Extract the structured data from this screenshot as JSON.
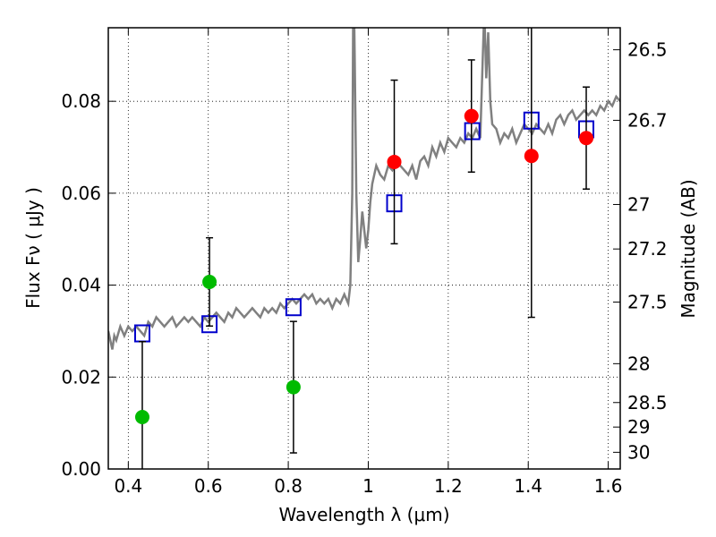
{
  "chart_data": {
    "type": "scatter",
    "xlabel": "Wavelength  λ (μm)",
    "ylabel": "Flux  Fν  ( μJy )",
    "y2label": "Magnitude (AB)",
    "xlim": [
      0.35,
      1.63
    ],
    "ylim": [
      0.0,
      0.096
    ],
    "grid": true,
    "x_ticks": [
      0.4,
      0.6,
      0.8,
      1.0,
      1.2,
      1.4,
      1.6
    ],
    "x_tick_labels": [
      "0.4",
      "0.6",
      "0.8",
      "1",
      "1.2",
      "1.4",
      "1.6"
    ],
    "y_ticks": [
      0.0,
      0.02,
      0.04,
      0.06,
      0.08
    ],
    "y_tick_labels": [
      "0.00",
      "0.02",
      "0.04",
      "0.06",
      "0.08"
    ],
    "y2_ticks": [
      26.5,
      26.7,
      27,
      27.2,
      27.5,
      28,
      28.5,
      29,
      30
    ],
    "y2_tick_labels": [
      "26.5",
      "26.7",
      "27",
      "27.2",
      "27.5",
      "28",
      "28.5",
      "29",
      "30"
    ],
    "series": [
      {
        "kind": "line",
        "color": "#808080",
        "x": [
          0.35,
          0.36,
          0.365,
          0.37,
          0.38,
          0.39,
          0.4,
          0.41,
          0.42,
          0.43,
          0.44,
          0.45,
          0.46,
          0.47,
          0.48,
          0.49,
          0.5,
          0.51,
          0.52,
          0.53,
          0.54,
          0.55,
          0.56,
          0.57,
          0.58,
          0.59,
          0.6,
          0.61,
          0.62,
          0.63,
          0.64,
          0.65,
          0.66,
          0.67,
          0.68,
          0.69,
          0.7,
          0.71,
          0.72,
          0.73,
          0.74,
          0.75,
          0.76,
          0.77,
          0.78,
          0.79,
          0.8,
          0.81,
          0.82,
          0.83,
          0.84,
          0.85,
          0.86,
          0.87,
          0.88,
          0.89,
          0.9,
          0.91,
          0.92,
          0.93,
          0.94,
          0.95,
          0.955,
          0.96,
          0.963,
          0.966,
          0.97,
          0.975,
          0.98,
          0.985,
          0.99,
          0.995,
          1.0,
          1.005,
          1.01,
          1.02,
          1.03,
          1.04,
          1.05,
          1.06,
          1.07,
          1.08,
          1.09,
          1.1,
          1.11,
          1.12,
          1.13,
          1.14,
          1.15,
          1.16,
          1.17,
          1.18,
          1.19,
          1.2,
          1.21,
          1.22,
          1.23,
          1.24,
          1.25,
          1.26,
          1.27,
          1.28,
          1.29,
          1.295,
          1.3,
          1.305,
          1.31,
          1.32,
          1.33,
          1.34,
          1.35,
          1.36,
          1.37,
          1.38,
          1.39,
          1.4,
          1.41,
          1.42,
          1.43,
          1.44,
          1.45,
          1.46,
          1.47,
          1.48,
          1.49,
          1.5,
          1.51,
          1.52,
          1.53,
          1.54,
          1.55,
          1.56,
          1.57,
          1.58,
          1.59,
          1.6,
          1.61,
          1.62,
          1.63
        ],
        "y": [
          0.03,
          0.026,
          0.029,
          0.028,
          0.031,
          0.029,
          0.031,
          0.03,
          0.031,
          0.03,
          0.029,
          0.032,
          0.031,
          0.033,
          0.032,
          0.031,
          0.032,
          0.033,
          0.031,
          0.032,
          0.033,
          0.032,
          0.033,
          0.032,
          0.031,
          0.033,
          0.032,
          0.033,
          0.034,
          0.033,
          0.032,
          0.034,
          0.033,
          0.035,
          0.034,
          0.033,
          0.034,
          0.035,
          0.034,
          0.033,
          0.035,
          0.034,
          0.035,
          0.034,
          0.036,
          0.035,
          0.036,
          0.037,
          0.036,
          0.037,
          0.038,
          0.037,
          0.038,
          0.036,
          0.037,
          0.036,
          0.037,
          0.035,
          0.037,
          0.036,
          0.038,
          0.036,
          0.04,
          0.06,
          0.11,
          0.09,
          0.06,
          0.045,
          0.05,
          0.056,
          0.052,
          0.048,
          0.052,
          0.058,
          0.062,
          0.066,
          0.064,
          0.063,
          0.066,
          0.065,
          0.067,
          0.066,
          0.065,
          0.064,
          0.066,
          0.063,
          0.067,
          0.068,
          0.066,
          0.07,
          0.068,
          0.071,
          0.069,
          0.072,
          0.071,
          0.07,
          0.072,
          0.071,
          0.073,
          0.072,
          0.074,
          0.072,
          0.1,
          0.085,
          0.095,
          0.08,
          0.075,
          0.074,
          0.071,
          0.073,
          0.072,
          0.074,
          0.071,
          0.073,
          0.075,
          0.074,
          0.073,
          0.075,
          0.074,
          0.073,
          0.075,
          0.073,
          0.076,
          0.077,
          0.075,
          0.077,
          0.078,
          0.076,
          0.077,
          0.078,
          0.077,
          0.078,
          0.077,
          0.079,
          0.078,
          0.08,
          0.079,
          0.081,
          0.08
        ]
      },
      {
        "kind": "open-square",
        "color": "#0000cc",
        "x": [
          0.435,
          0.603,
          0.813,
          1.065,
          1.26,
          1.408,
          1.545
        ],
        "y": [
          0.0295,
          0.0315,
          0.0352,
          0.0578,
          0.0735,
          0.0758,
          0.0739
        ]
      },
      {
        "kind": "filled-circle",
        "color": "#00bb00",
        "x": [
          0.435,
          0.603,
          0.813
        ],
        "y": [
          0.0113,
          0.0407,
          0.0178
        ],
        "yerr": [
          0.0164,
          0.0096,
          0.0143
        ]
      },
      {
        "kind": "filled-circle",
        "color": "#ff0000",
        "x": [
          1.065,
          1.258,
          1.408,
          1.545
        ],
        "y": [
          0.0668,
          0.0768,
          0.0681,
          0.072
        ],
        "yerr": [
          0.0178,
          0.0122,
          0.0351,
          0.0111
        ]
      }
    ]
  }
}
